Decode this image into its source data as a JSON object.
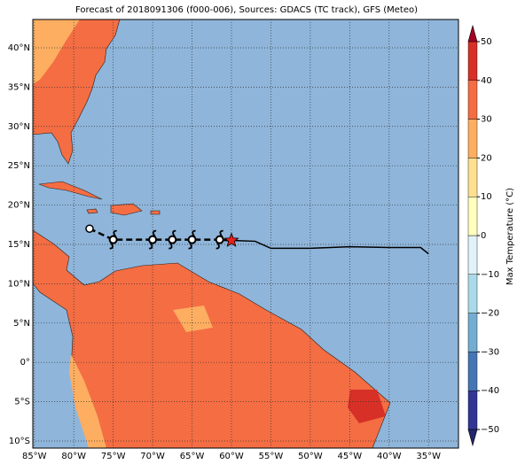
{
  "chart_data": {
    "type": "map",
    "title": "Forecast of 2018091306 (f000-006), Sources: GDACS (TC track), GFS (Meteo)",
    "xlim": [
      -85.2,
      -31.2
    ],
    "ylim": [
      -10.9,
      43.6
    ],
    "xticks": [
      {
        "value": -85,
        "label": "85°W"
      },
      {
        "value": -80,
        "label": "80°W"
      },
      {
        "value": -75,
        "label": "75°W"
      },
      {
        "value": -70,
        "label": "70°W"
      },
      {
        "value": -65,
        "label": "65°W"
      },
      {
        "value": -60,
        "label": "60°W"
      },
      {
        "value": -55,
        "label": "55°W"
      },
      {
        "value": -50,
        "label": "50°W"
      },
      {
        "value": -45,
        "label": "45°W"
      },
      {
        "value": -40,
        "label": "40°W"
      },
      {
        "value": -35,
        "label": "35°W"
      }
    ],
    "yticks": [
      {
        "value": -10,
        "label": "10°S"
      },
      {
        "value": -5,
        "label": "5°S"
      },
      {
        "value": 0,
        "label": "0°"
      },
      {
        "value": 5,
        "label": "5°N"
      },
      {
        "value": 10,
        "label": "10°N"
      },
      {
        "value": 15,
        "label": "15°N"
      },
      {
        "value": 20,
        "label": "20°N"
      },
      {
        "value": 25,
        "label": "25°N"
      },
      {
        "value": 30,
        "label": "30°N"
      },
      {
        "value": 35,
        "label": "35°N"
      },
      {
        "value": 40,
        "label": "40°N"
      }
    ],
    "grid": true,
    "colorbar": {
      "label": "Max Temperature (°C)",
      "clim": [
        -50,
        50
      ],
      "ticks": [
        {
          "value": -50,
          "label": "−50"
        },
        {
          "value": -40,
          "label": "−40"
        },
        {
          "value": -30,
          "label": "−30"
        },
        {
          "value": -20,
          "label": "−20"
        },
        {
          "value": -10,
          "label": "−10"
        },
        0,
        10,
        20,
        30,
        40,
        50
      ],
      "colors": [
        "#313695",
        "#4575b4",
        "#74add1",
        "#abd9e9",
        "#e0f3f8",
        "#ffffbf",
        "#fee090",
        "#fdae61",
        "#f46d43",
        "#d73027"
      ],
      "under": "#23256e",
      "over": "#a50026"
    },
    "track": {
      "forecast_lon": [
        -78,
        -75,
        -70,
        -67.5,
        -65,
        -61.5,
        -60
      ],
      "forecast_lat": [
        17,
        15.6,
        15.6,
        15.6,
        15.6,
        15.6,
        15.5
      ],
      "observed_lon": [
        -60,
        -57,
        -55,
        -50,
        -45,
        -40,
        -36,
        -35
      ],
      "observed_lat": [
        15.5,
        15.4,
        14.5,
        14.5,
        14.7,
        14.6,
        14.6,
        13.8
      ],
      "current": [
        -60,
        15.5
      ]
    }
  }
}
